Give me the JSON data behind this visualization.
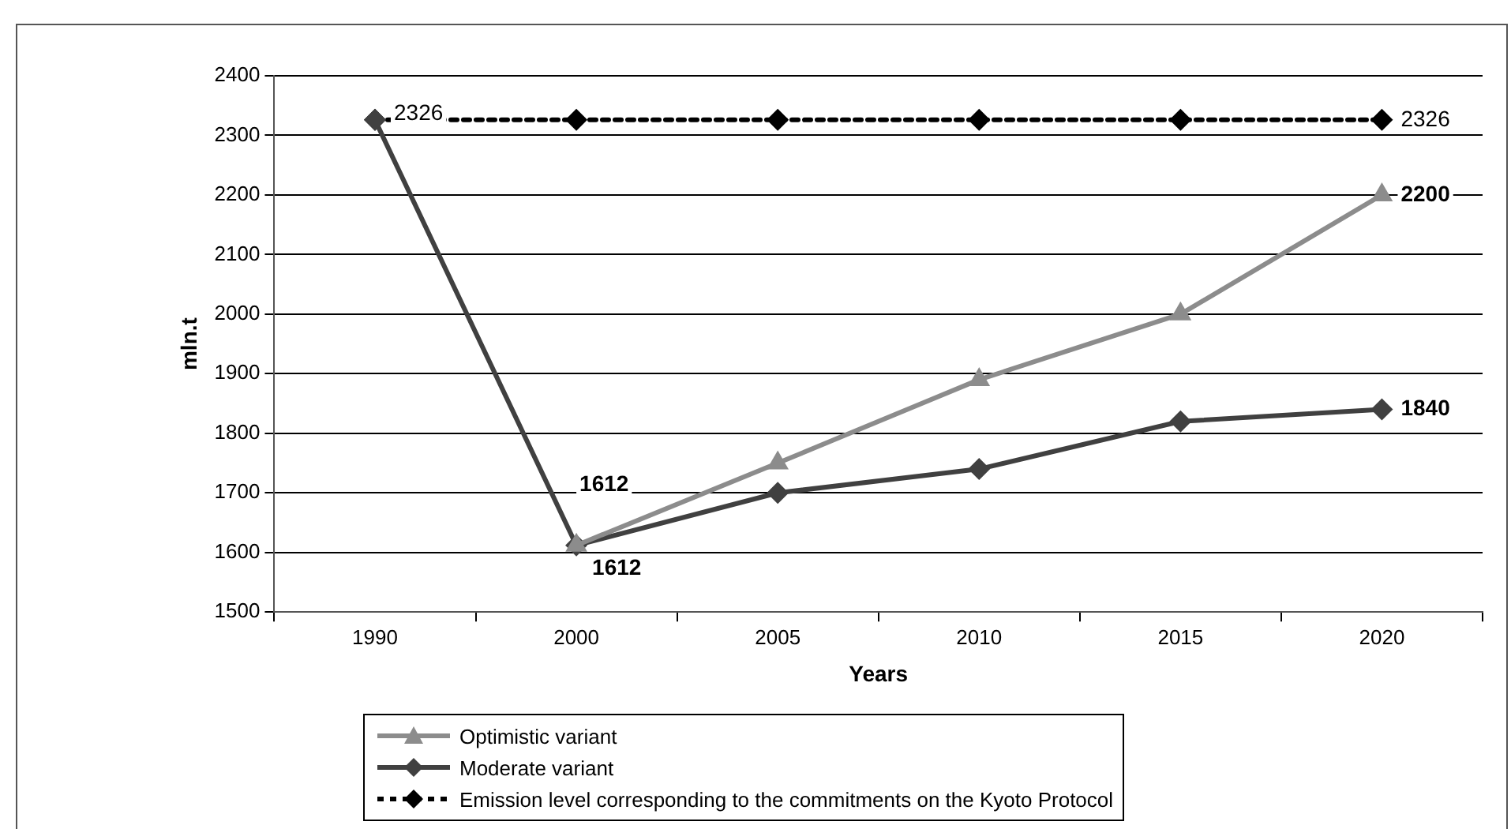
{
  "chart_data": {
    "type": "line",
    "xlabel": "Years",
    "ylabel": "mln.t",
    "categories": [
      "1990",
      "2000",
      "2005",
      "2010",
      "2015",
      "2020"
    ],
    "series": [
      {
        "name": "Optimistic variant",
        "color": "#8c8c8c",
        "marker": "triangle",
        "line_style": "solid",
        "values": [
          null,
          1612,
          1750,
          1890,
          2000,
          2200
        ],
        "value_labels": [
          null,
          "1612",
          null,
          null,
          null,
          "2200"
        ]
      },
      {
        "name": "Moderate variant",
        "color": "#404040",
        "marker": "diamond",
        "line_style": "solid",
        "values": [
          2326,
          1612,
          1700,
          1740,
          1820,
          1840
        ],
        "value_labels": [
          null,
          "1612",
          null,
          null,
          null,
          "1840"
        ]
      },
      {
        "name": "Emission level corresponding to the commitments on the Kyoto Protocol",
        "color": "#000000",
        "marker": "diamond",
        "line_style": "dashed",
        "values": [
          2326,
          2326,
          2326,
          2326,
          2326,
          2326
        ],
        "value_labels": [
          "2326",
          null,
          null,
          null,
          null,
          "2326"
        ]
      }
    ],
    "ylim": [
      1500,
      2400
    ],
    "yticks": [
      1500,
      1600,
      1700,
      1800,
      1900,
      2000,
      2100,
      2200,
      2300,
      2400
    ],
    "grid": "y",
    "legend": "bottom"
  }
}
